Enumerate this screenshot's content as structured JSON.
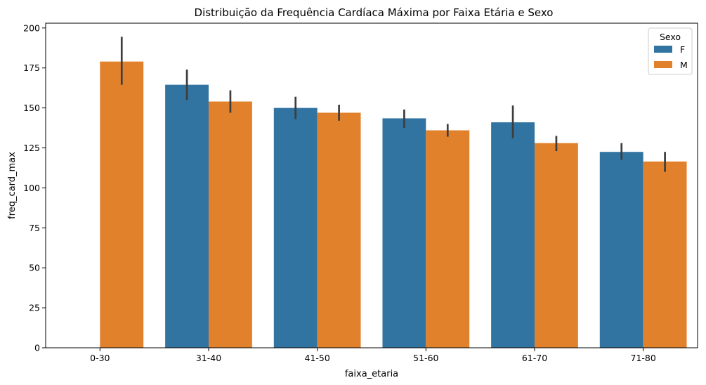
{
  "chart_data": {
    "type": "bar",
    "title": "Distribuição da Frequência Cardíaca Máxima por Faixa Etária e Sexo",
    "xlabel": "faixa_etaria",
    "ylabel": "freq_card_max",
    "categories": [
      "0-30",
      "31-40",
      "41-50",
      "51-60",
      "61-70",
      "71-80"
    ],
    "ylim": [
      0,
      203
    ],
    "yticks": [
      0,
      25,
      50,
      75,
      100,
      125,
      150,
      175,
      200
    ],
    "legend": {
      "title": "Sexo",
      "placement": "top-right"
    },
    "series": [
      {
        "name": "F",
        "color": "#3274a1",
        "values": [
          null,
          164.5,
          150.0,
          143.5,
          141.0,
          122.5
        ],
        "ci_low": [
          null,
          155.0,
          143.0,
          137.5,
          131.0,
          117.5
        ],
        "ci_high": [
          null,
          174.0,
          157.0,
          149.0,
          151.5,
          128.0
        ]
      },
      {
        "name": "M",
        "color": "#e1812c",
        "values": [
          179.0,
          154.0,
          147.0,
          136.0,
          128.0,
          116.5
        ],
        "ci_low": [
          164.5,
          147.0,
          142.0,
          132.0,
          123.0,
          110.0
        ],
        "ci_high": [
          194.5,
          161.0,
          152.0,
          140.0,
          132.5,
          122.5
        ]
      }
    ],
    "grid": false
  }
}
